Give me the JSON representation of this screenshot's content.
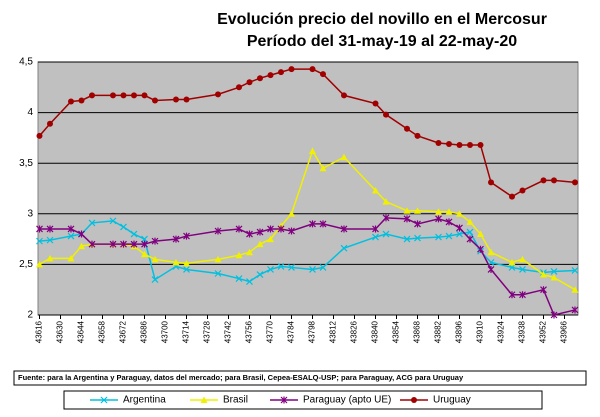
{
  "chart_data": {
    "type": "line",
    "title": "Evolución precio del novillo en el Mercosur",
    "subtitle": "Período del 31-may-19 al 22-may-20",
    "footnote": "Fuente: para la Argentina y Paraguay, datos del mercado; para Brasil, Cepea-ESALQ-USP; para Paraguay, ACG para Uruguay",
    "x": [
      43616,
      43623,
      43637,
      43644,
      43651,
      43665,
      43672,
      43679,
      43686,
      43693,
      43707,
      43714,
      43735,
      43749,
      43756,
      43763,
      43770,
      43777,
      43784,
      43798,
      43805,
      43819,
      43840,
      43847,
      43861,
      43868,
      43882,
      43889,
      43896,
      43903,
      43910,
      43917,
      43931,
      43938,
      43952,
      43959,
      43973
    ],
    "series": [
      {
        "name": "Argentina",
        "color": "#00c0e0",
        "marker": "x",
        "values": [
          2.73,
          2.74,
          2.78,
          2.8,
          2.91,
          2.93,
          2.87,
          2.8,
          2.75,
          2.35,
          2.48,
          2.45,
          2.41,
          2.36,
          2.33,
          2.4,
          2.45,
          2.48,
          2.47,
          2.45,
          2.47,
          2.66,
          2.77,
          2.8,
          2.75,
          2.76,
          2.77,
          2.78,
          2.8,
          2.82,
          2.63,
          2.52,
          2.47,
          2.45,
          2.42,
          2.43,
          2.44
        ]
      },
      {
        "name": "Brasil",
        "color": "#f0f000",
        "marker": "triangle",
        "values": [
          2.5,
          2.56,
          2.56,
          2.68,
          2.7,
          2.7,
          2.7,
          2.68,
          2.6,
          2.55,
          2.52,
          2.51,
          2.55,
          2.59,
          2.62,
          2.7,
          2.75,
          2.88,
          3.0,
          3.62,
          3.45,
          3.56,
          3.23,
          3.12,
          3.03,
          3.03,
          3.02,
          3.02,
          3.0,
          2.92,
          2.8,
          2.62,
          2.52,
          2.55,
          2.4,
          2.37,
          2.25
        ]
      },
      {
        "name": "Paraguay (apto UE)",
        "color": "#800080",
        "marker": "star",
        "values": [
          2.85,
          2.85,
          2.85,
          2.8,
          2.7,
          2.7,
          2.7,
          2.7,
          2.7,
          2.73,
          2.75,
          2.78,
          2.83,
          2.85,
          2.8,
          2.82,
          2.85,
          2.85,
          2.83,
          2.9,
          2.9,
          2.85,
          2.85,
          2.96,
          2.95,
          2.9,
          2.95,
          2.92,
          2.86,
          2.75,
          2.65,
          2.45,
          2.2,
          2.2,
          2.25,
          2.0,
          2.05
        ]
      },
      {
        "name": "Uruguay",
        "color": "#a00000",
        "marker": "circle",
        "values": [
          3.77,
          3.89,
          4.11,
          4.12,
          4.17,
          4.17,
          4.17,
          4.17,
          4.17,
          4.12,
          4.13,
          4.13,
          4.18,
          4.25,
          4.3,
          4.34,
          4.37,
          4.4,
          4.43,
          4.43,
          4.38,
          4.17,
          4.09,
          3.98,
          3.84,
          3.77,
          3.7,
          3.69,
          3.68,
          3.68,
          3.68,
          3.31,
          3.17,
          3.23,
          3.33,
          3.33,
          3.31
        ]
      }
    ],
    "xlim": [
      43615,
      43975
    ],
    "xticks": [
      43616,
      43630,
      43644,
      43658,
      43672,
      43686,
      43700,
      43714,
      43728,
      43742,
      43756,
      43770,
      43784,
      43798,
      43812,
      43826,
      43840,
      43854,
      43868,
      43882,
      43896,
      43910,
      43924,
      43938,
      43952,
      43966
    ],
    "ylim": [
      2,
      4.5
    ],
    "yticks": [
      2,
      {
        "value": 2.5,
        "label": "2,5"
      },
      3,
      {
        "value": 3.5,
        "label": "3,5"
      },
      4,
      {
        "value": 4.5,
        "label": "4,5"
      }
    ],
    "grid": true,
    "background": "#c0c0c0"
  }
}
